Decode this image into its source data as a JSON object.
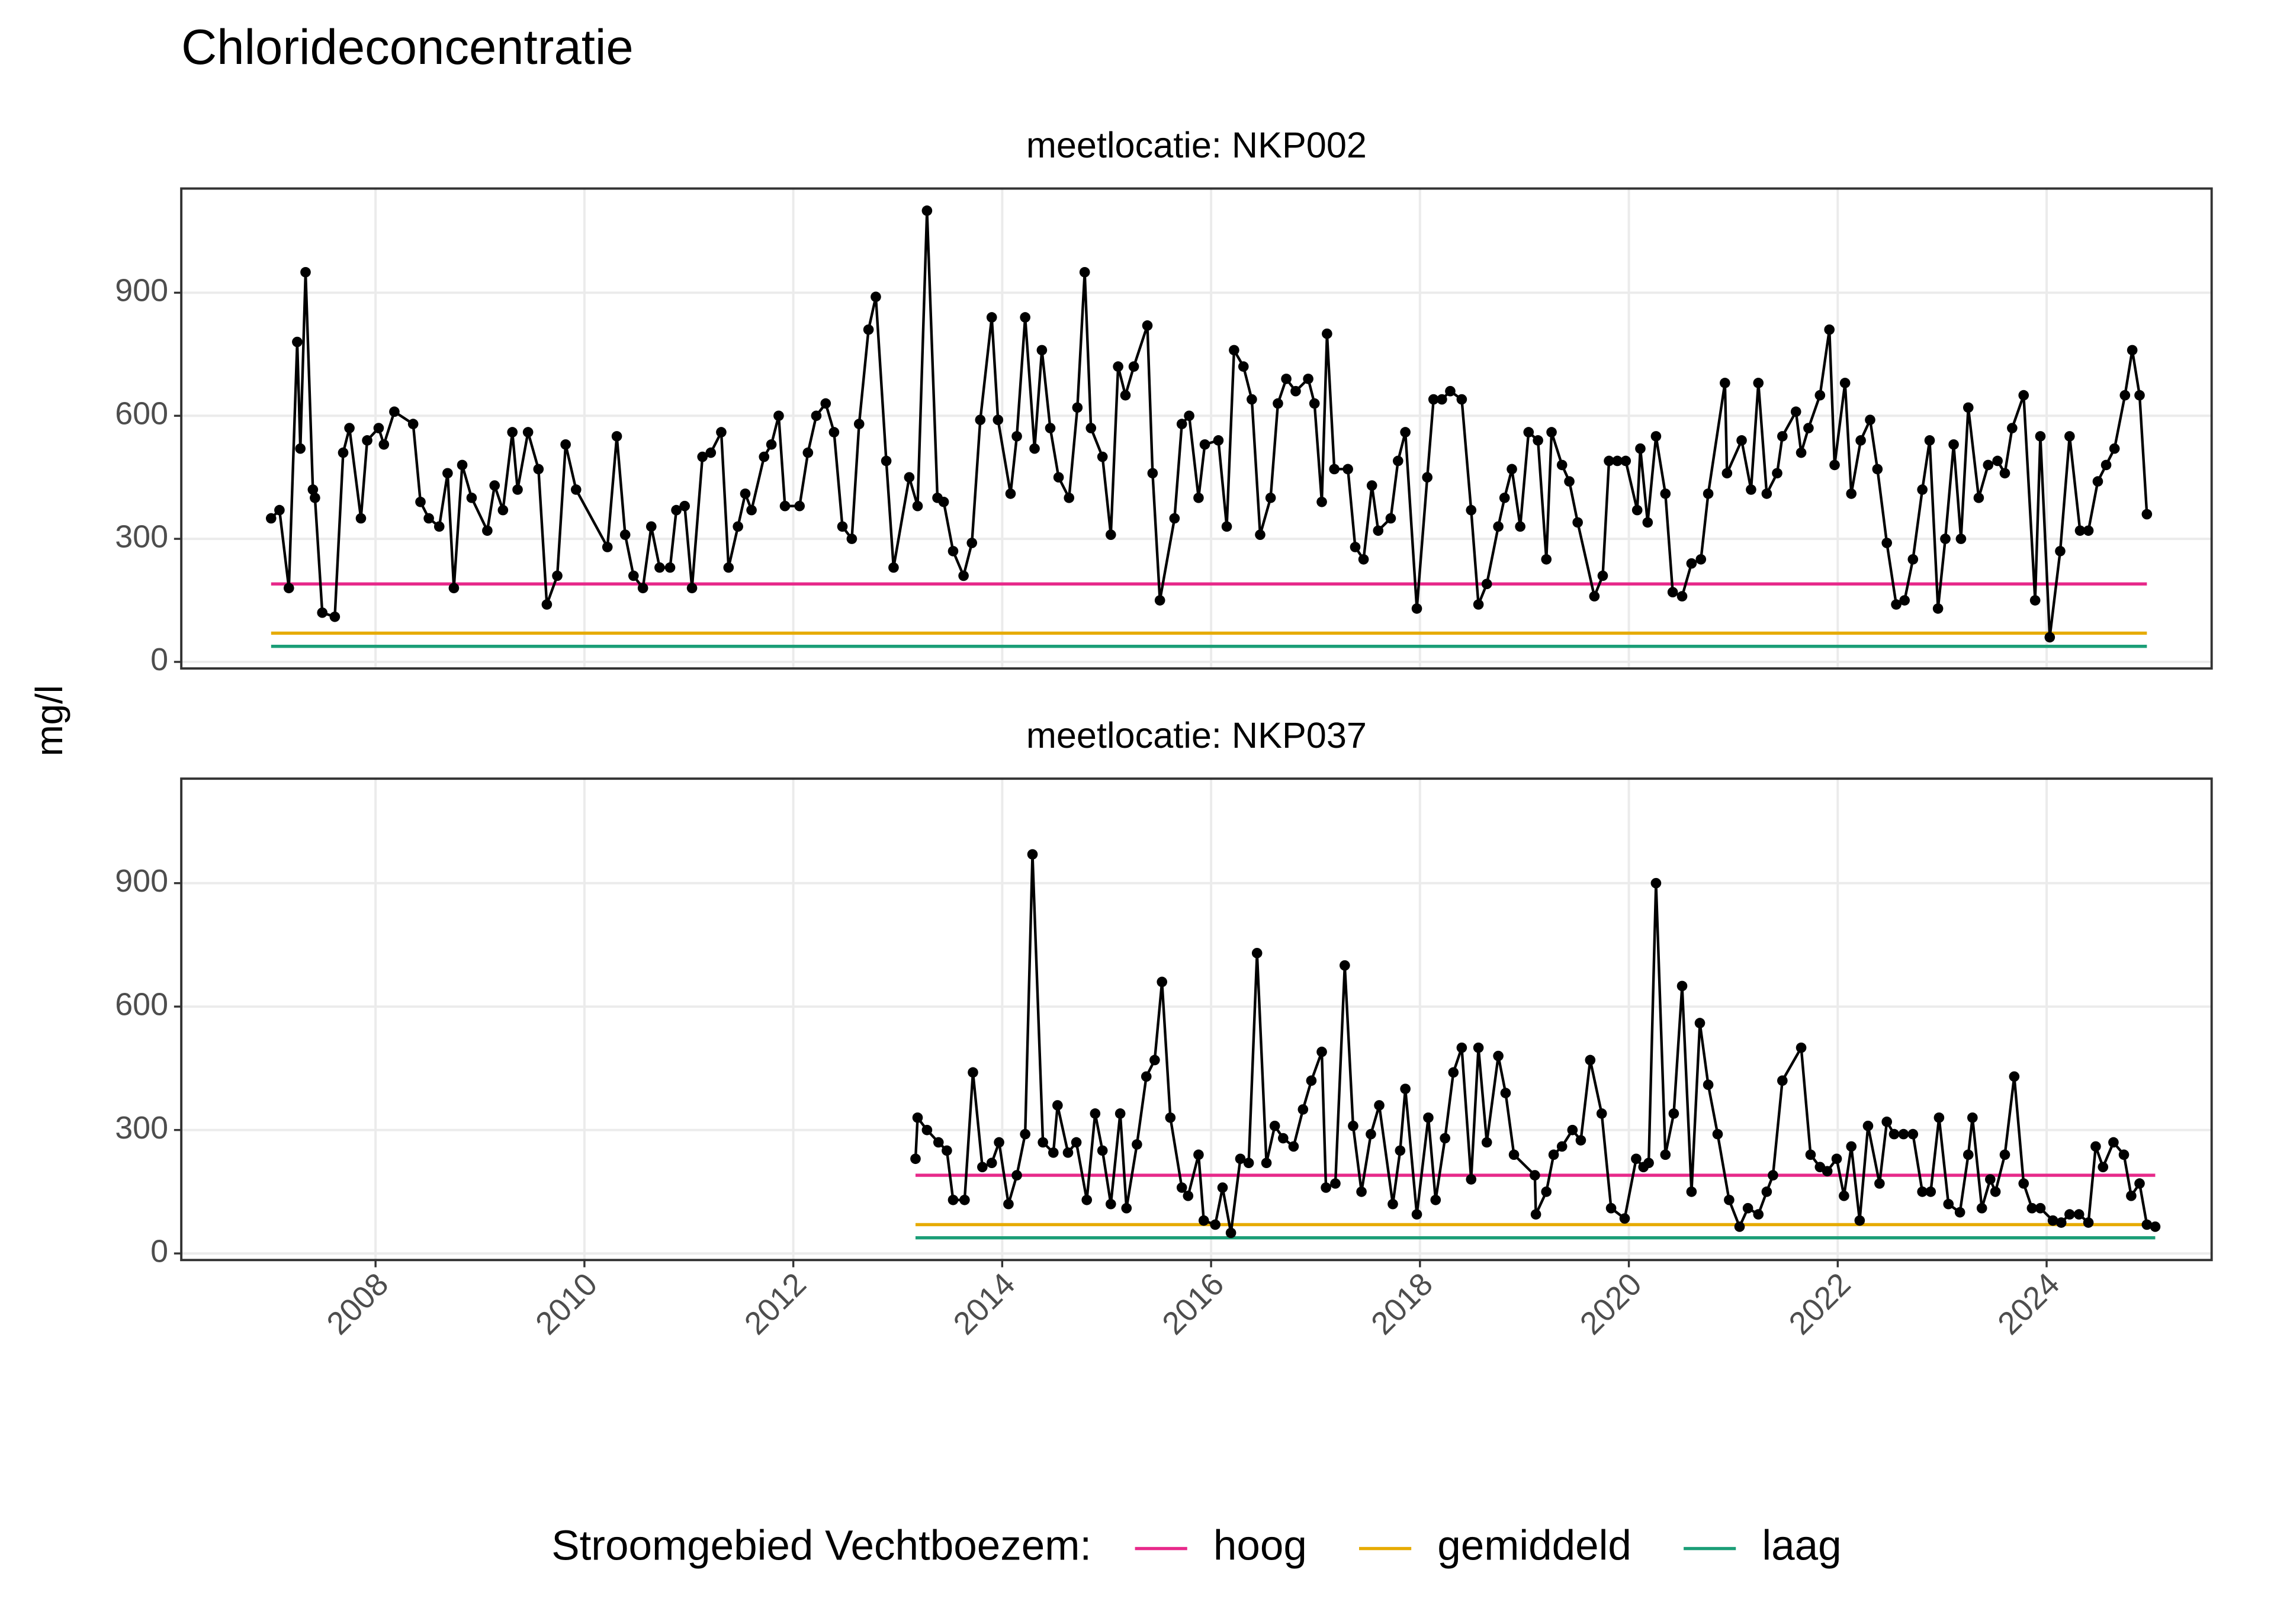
{
  "title": "Chlorideconcentratie",
  "ylabel": "mg/l",
  "legend": {
    "title": "Stroomgebied Vechtboezem:",
    "corner": "bottom"
  },
  "thresholds": [
    {
      "name": "hoog",
      "color": "#e7298a",
      "value": 190
    },
    {
      "name": "gemiddeld",
      "color": "#e6ab02",
      "value": 70
    },
    {
      "name": "laag",
      "color": "#1b9e77",
      "value": 38
    }
  ],
  "chart_data": [
    {
      "type": "line",
      "title": "meetlocatie: NKP002",
      "color": "#000000",
      "markers": true,
      "grid": true,
      "xlim": [
        2006.14,
        2025.58
      ],
      "xticks": [
        2008,
        2010,
        2012,
        2014,
        2016,
        2018,
        2020,
        2022,
        2024
      ],
      "ylim": [
        -16,
        1154
      ],
      "yticks": [
        0,
        300,
        600,
        900
      ],
      "x": [
        2007.0,
        2007.08,
        2007.17,
        2007.25,
        2007.28,
        2007.33,
        2007.4,
        2007.42,
        2007.49,
        2007.61,
        2007.69,
        2007.75,
        2007.86,
        2007.92,
        2008.03,
        2008.08,
        2008.18,
        2008.36,
        2008.43,
        2008.51,
        2008.61,
        2008.69,
        2008.75,
        2008.83,
        2008.92,
        2009.07,
        2009.14,
        2009.22,
        2009.31,
        2009.36,
        2009.46,
        2009.56,
        2009.64,
        2009.74,
        2009.82,
        2009.92,
        2010.22,
        2010.31,
        2010.39,
        2010.47,
        2010.56,
        2010.64,
        2010.72,
        2010.82,
        2010.88,
        2010.96,
        2011.03,
        2011.13,
        2011.21,
        2011.31,
        2011.38,
        2011.47,
        2011.54,
        2011.6,
        2011.72,
        2011.79,
        2011.86,
        2011.92,
        2012.06,
        2012.14,
        2012.22,
        2012.31,
        2012.39,
        2012.47,
        2012.56,
        2012.63,
        2012.72,
        2012.79,
        2012.89,
        2012.96,
        2013.11,
        2013.19,
        2013.28,
        2013.38,
        2013.44,
        2013.53,
        2013.63,
        2013.71,
        2013.79,
        2013.9,
        2013.96,
        2014.08,
        2014.14,
        2014.22,
        2014.31,
        2014.38,
        2014.46,
        2014.54,
        2014.64,
        2014.72,
        2014.79,
        2014.85,
        2014.96,
        2015.04,
        2015.11,
        2015.18,
        2015.26,
        2015.39,
        2015.44,
        2015.51,
        2015.65,
        2015.72,
        2015.79,
        2015.88,
        2015.94,
        2016.07,
        2016.15,
        2016.22,
        2016.31,
        2016.39,
        2016.47,
        2016.57,
        2016.64,
        2016.72,
        2016.81,
        2016.93,
        2016.99,
        2017.06,
        2017.11,
        2017.18,
        2017.31,
        2017.38,
        2017.46,
        2017.54,
        2017.6,
        2017.72,
        2017.79,
        2017.86,
        2017.97,
        2018.07,
        2018.13,
        2018.21,
        2018.29,
        2018.4,
        2018.49,
        2018.56,
        2018.64,
        2018.75,
        2018.81,
        2018.88,
        2018.96,
        2019.04,
        2019.13,
        2019.21,
        2019.26,
        2019.36,
        2019.43,
        2019.51,
        2019.67,
        2019.75,
        2019.81,
        2019.89,
        2019.97,
        2020.08,
        2020.11,
        2020.18,
        2020.26,
        2020.35,
        2020.42,
        2020.51,
        2020.6,
        2020.69,
        2020.76,
        2020.92,
        2020.94,
        2021.08,
        2021.17,
        2021.24,
        2021.32,
        2021.42,
        2021.47,
        2021.6,
        2021.65,
        2021.72,
        2021.83,
        2021.92,
        2021.97,
        2022.07,
        2022.13,
        2022.22,
        2022.31,
        2022.38,
        2022.47,
        2022.56,
        2022.64,
        2022.72,
        2022.81,
        2022.88,
        2022.96,
        2023.03,
        2023.11,
        2023.18,
        2023.25,
        2023.35,
        2023.44,
        2023.53,
        2023.6,
        2023.67,
        2023.78,
        2023.89,
        2023.94,
        2024.03,
        2024.13,
        2024.22,
        2024.32,
        2024.4,
        2024.49,
        2024.57,
        2024.65,
        2024.75,
        2024.82,
        2024.89,
        2024.96
      ],
      "values": [
        350,
        370,
        180,
        780,
        520,
        950,
        420,
        400,
        120,
        110,
        510,
        570,
        350,
        540,
        570,
        530,
        610,
        580,
        390,
        350,
        330,
        460,
        180,
        480,
        400,
        320,
        430,
        370,
        560,
        420,
        560,
        470,
        140,
        210,
        530,
        420,
        280,
        550,
        310,
        210,
        180,
        330,
        230,
        230,
        370,
        380,
        180,
        500,
        510,
        560,
        230,
        330,
        410,
        370,
        500,
        530,
        600,
        380,
        380,
        510,
        600,
        630,
        560,
        330,
        300,
        580,
        810,
        890,
        490,
        230,
        450,
        380,
        1100,
        400,
        390,
        270,
        210,
        290,
        590,
        840,
        590,
        410,
        550,
        840,
        520,
        760,
        570,
        450,
        400,
        620,
        950,
        570,
        500,
        310,
        720,
        650,
        720,
        820,
        460,
        150,
        350,
        580,
        600,
        400,
        530,
        540,
        330,
        760,
        720,
        640,
        310,
        400,
        630,
        690,
        660,
        690,
        630,
        390,
        800,
        470,
        470,
        280,
        250,
        430,
        320,
        350,
        490,
        560,
        130,
        450,
        640,
        640,
        660,
        640,
        370,
        140,
        190,
        330,
        400,
        470,
        330,
        560,
        540,
        250,
        560,
        480,
        440,
        340,
        160,
        210,
        490,
        490,
        490,
        370,
        520,
        340,
        550,
        410,
        170,
        160,
        240,
        250,
        410,
        680,
        460,
        540,
        420,
        680,
        410,
        460,
        550,
        610,
        510,
        570,
        650,
        810,
        480,
        680,
        410,
        540,
        590,
        470,
        290,
        140,
        150,
        250,
        420,
        540,
        130,
        300,
        530,
        300,
        620,
        400,
        480,
        490,
        460,
        570,
        650,
        150,
        550,
        60,
        270,
        550,
        320,
        320,
        440,
        480,
        520,
        650,
        760,
        650,
        360
      ]
    },
    {
      "type": "line",
      "title": "meetlocatie: NKP037",
      "color": "#000000",
      "markers": true,
      "grid": true,
      "xlim": [
        2006.14,
        2025.58
      ],
      "xticks": [
        2008,
        2010,
        2012,
        2014,
        2016,
        2018,
        2020,
        2022,
        2024
      ],
      "ylim": [
        -16,
        1154
      ],
      "yticks": [
        0,
        300,
        600,
        900
      ],
      "x": [
        2013.17,
        2013.19,
        2013.28,
        2013.39,
        2013.47,
        2013.53,
        2013.64,
        2013.72,
        2013.81,
        2013.9,
        2013.97,
        2014.06,
        2014.14,
        2014.22,
        2014.29,
        2014.39,
        2014.49,
        2014.53,
        2014.63,
        2014.71,
        2014.81,
        2014.89,
        2014.96,
        2015.04,
        2015.13,
        2015.19,
        2015.29,
        2015.38,
        2015.46,
        2015.53,
        2015.61,
        2015.72,
        2015.78,
        2015.88,
        2015.93,
        2016.04,
        2016.11,
        2016.19,
        2016.28,
        2016.36,
        2016.44,
        2016.53,
        2016.61,
        2016.69,
        2016.79,
        2016.88,
        2016.96,
        2017.06,
        2017.1,
        2017.19,
        2017.28,
        2017.36,
        2017.44,
        2017.53,
        2017.61,
        2017.74,
        2017.81,
        2017.86,
        2017.97,
        2018.08,
        2018.15,
        2018.24,
        2018.32,
        2018.4,
        2018.49,
        2018.56,
        2018.64,
        2018.75,
        2018.82,
        2018.9,
        2019.1,
        2019.11,
        2019.21,
        2019.28,
        2019.36,
        2019.46,
        2019.54,
        2019.63,
        2019.74,
        2019.83,
        2019.96,
        2020.07,
        2020.14,
        2020.19,
        2020.26,
        2020.35,
        2020.43,
        2020.51,
        2020.6,
        2020.68,
        2020.76,
        2020.85,
        2020.96,
        2021.06,
        2021.14,
        2021.24,
        2021.32,
        2021.38,
        2021.47,
        2021.65,
        2021.74,
        2021.83,
        2021.9,
        2021.99,
        2022.06,
        2022.13,
        2022.21,
        2022.29,
        2022.4,
        2022.47,
        2022.54,
        2022.63,
        2022.72,
        2022.81,
        2022.89,
        2022.97,
        2023.06,
        2023.17,
        2023.25,
        2023.29,
        2023.38,
        2023.46,
        2023.51,
        2023.6,
        2023.69,
        2023.78,
        2023.86,
        2023.94,
        2024.06,
        2024.14,
        2024.22,
        2024.31,
        2024.4,
        2024.47,
        2024.54,
        2024.64,
        2024.74,
        2024.81,
        2024.89,
        2024.96,
        2025.04
      ],
      "values": [
        230,
        330,
        300,
        270,
        250,
        130,
        130,
        440,
        210,
        220,
        270,
        120,
        190,
        290,
        970,
        270,
        245,
        360,
        245,
        270,
        130,
        340,
        250,
        120,
        340,
        110,
        265,
        430,
        470,
        660,
        330,
        160,
        140,
        240,
        80,
        70,
        160,
        50,
        230,
        220,
        730,
        220,
        310,
        280,
        260,
        350,
        420,
        490,
        160,
        170,
        700,
        310,
        150,
        290,
        360,
        120,
        250,
        400,
        95,
        330,
        130,
        280,
        440,
        500,
        180,
        500,
        270,
        480,
        390,
        240,
        190,
        95,
        150,
        240,
        260,
        300,
        275,
        470,
        340,
        110,
        85,
        230,
        210,
        220,
        900,
        240,
        340,
        650,
        150,
        560,
        410,
        290,
        130,
        65,
        110,
        95,
        150,
        190,
        420,
        500,
        240,
        210,
        200,
        230,
        140,
        260,
        80,
        310,
        170,
        320,
        290,
        290,
        290,
        150,
        150,
        330,
        120,
        100,
        240,
        330,
        110,
        180,
        150,
        240,
        430,
        170,
        110,
        110,
        80,
        75,
        95,
        95,
        75,
        260,
        210,
        270,
        240,
        140,
        170,
        70,
        65
      ]
    }
  ]
}
